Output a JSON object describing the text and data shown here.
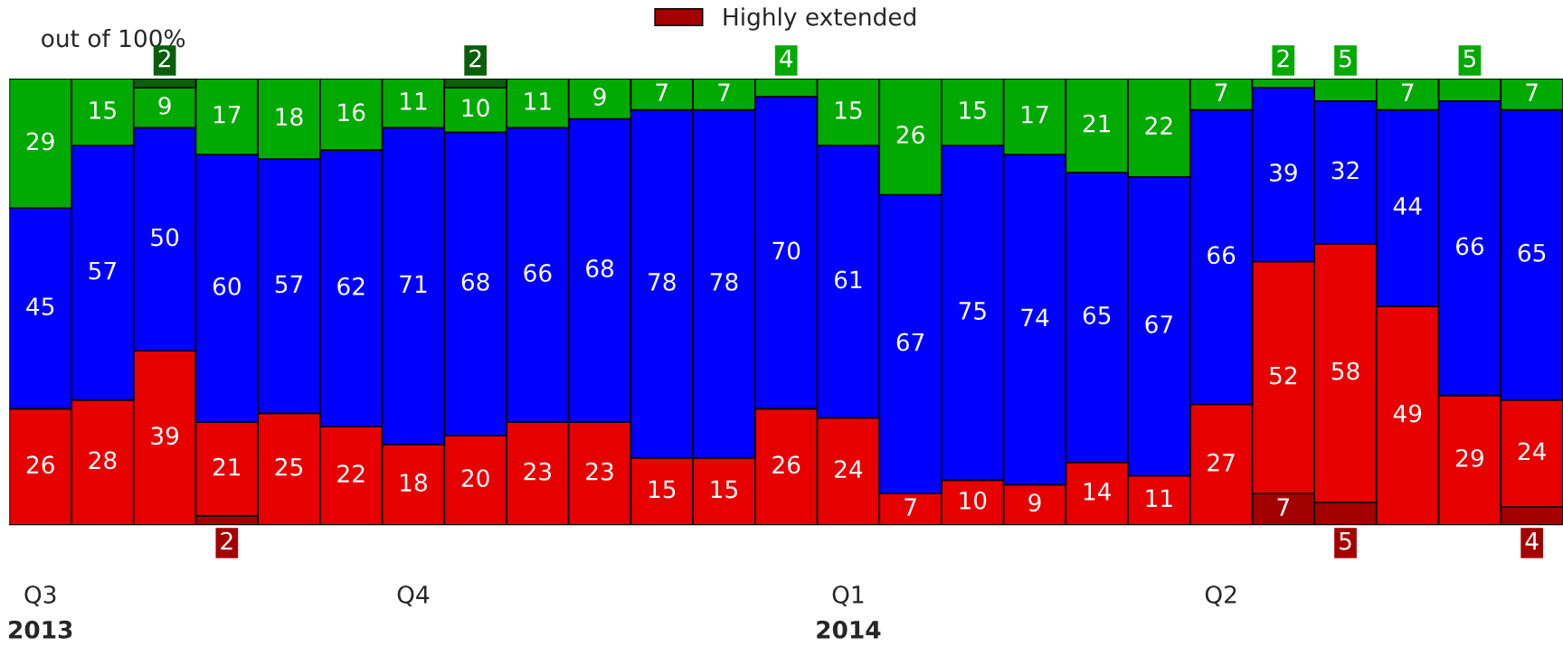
{
  "chart_data": {
    "type": "bar",
    "stacked": true,
    "ylabel": "out of 100%",
    "ylim": [
      0,
      100
    ],
    "tick_labels": "x",
    "data_labels": true,
    "legend": "top",
    "categories": [
      "Q3\n2013",
      null,
      null,
      null,
      null,
      null,
      "Q4",
      null,
      null,
      null,
      null,
      null,
      null,
      "Q1\n2014",
      null,
      null,
      null,
      null,
      null,
      "Q2",
      null,
      null,
      null,
      null,
      null
    ],
    "series": [
      {
        "name": "Highly extended",
        "color": "#a50000",
        "values": [
          null,
          null,
          null,
          2,
          null,
          null,
          null,
          null,
          null,
          null,
          null,
          null,
          null,
          null,
          null,
          null,
          null,
          null,
          null,
          null,
          7,
          5,
          null,
          null,
          4
        ]
      },
      {
        "color": "#e60000",
        "values": [
          26,
          28,
          39,
          21,
          25,
          22,
          18,
          20,
          23,
          23,
          15,
          15,
          26,
          24,
          7,
          10,
          9,
          14,
          11,
          27,
          52,
          58,
          49,
          29,
          24
        ]
      },
      {
        "color": "#0000ff",
        "values": [
          45,
          57,
          50,
          60,
          57,
          62,
          71,
          68,
          66,
          68,
          78,
          78,
          70,
          61,
          67,
          75,
          74,
          65,
          67,
          66,
          39,
          32,
          44,
          66,
          65
        ]
      },
      {
        "color": "#00aa00",
        "values": [
          29,
          15,
          9,
          17,
          18,
          16,
          11,
          10,
          11,
          9,
          7,
          7,
          4,
          15,
          26,
          15,
          17,
          21,
          22,
          7,
          2,
          5,
          7,
          5,
          7
        ]
      },
      {
        "color": "#0b5e0b",
        "values": [
          null,
          null,
          2,
          null,
          null,
          null,
          null,
          2,
          null,
          null,
          null,
          null,
          null,
          null,
          null,
          null,
          null,
          null,
          null,
          null,
          null,
          null,
          null,
          null,
          null
        ]
      }
    ]
  }
}
